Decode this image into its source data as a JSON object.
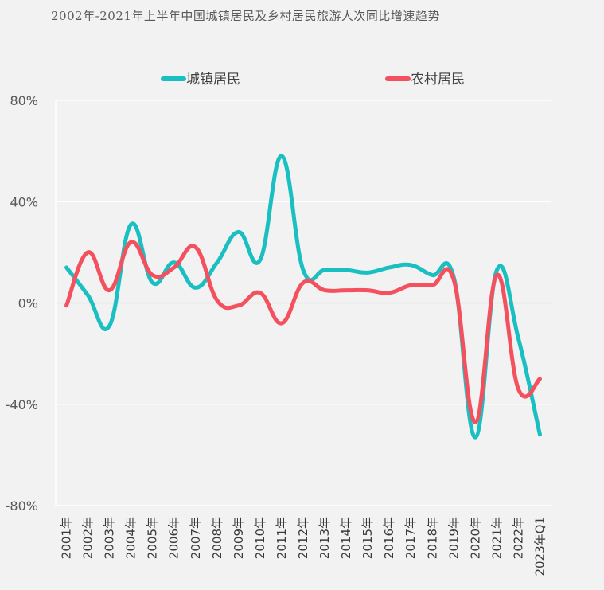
{
  "chart_data": {
    "type": "line",
    "title": "2002年-2021年上半年中国城镇居民及乡村居民旅游人次同比增速趋势",
    "xlabel": "",
    "ylabel": "",
    "categories": [
      "2001年",
      "2002年",
      "2003年",
      "2004年",
      "2005年",
      "2006年",
      "2007年",
      "2008年",
      "2009年",
      "2010年",
      "2011年",
      "2012年",
      "2013年",
      "2014年",
      "2015年",
      "2016年",
      "2017年",
      "2018年",
      "2019年",
      "2020年",
      "2021年",
      "2022年",
      "2023年Q1"
    ],
    "y_ticks": [
      "80%",
      "40%",
      "0%",
      "-40%",
      "-80%"
    ],
    "ylim": [
      -80,
      80
    ],
    "unit": "%",
    "legend_position": "top",
    "grid": true,
    "series": [
      {
        "name": "城镇居民",
        "color": "#1abfc1",
        "values": [
          14,
          3,
          -9,
          31,
          8,
          16,
          6,
          16,
          28,
          17,
          58,
          13,
          13,
          13,
          12,
          14,
          15,
          11,
          10,
          -53,
          13,
          -14,
          -52
        ]
      },
      {
        "name": "农村居民",
        "color": "#f4505e",
        "values": [
          -1,
          20,
          5,
          24,
          11,
          14,
          22,
          1,
          -1,
          4,
          -8,
          8,
          5,
          5,
          5,
          4,
          7,
          7,
          9,
          -47,
          11,
          -34,
          -30
        ]
      }
    ]
  }
}
